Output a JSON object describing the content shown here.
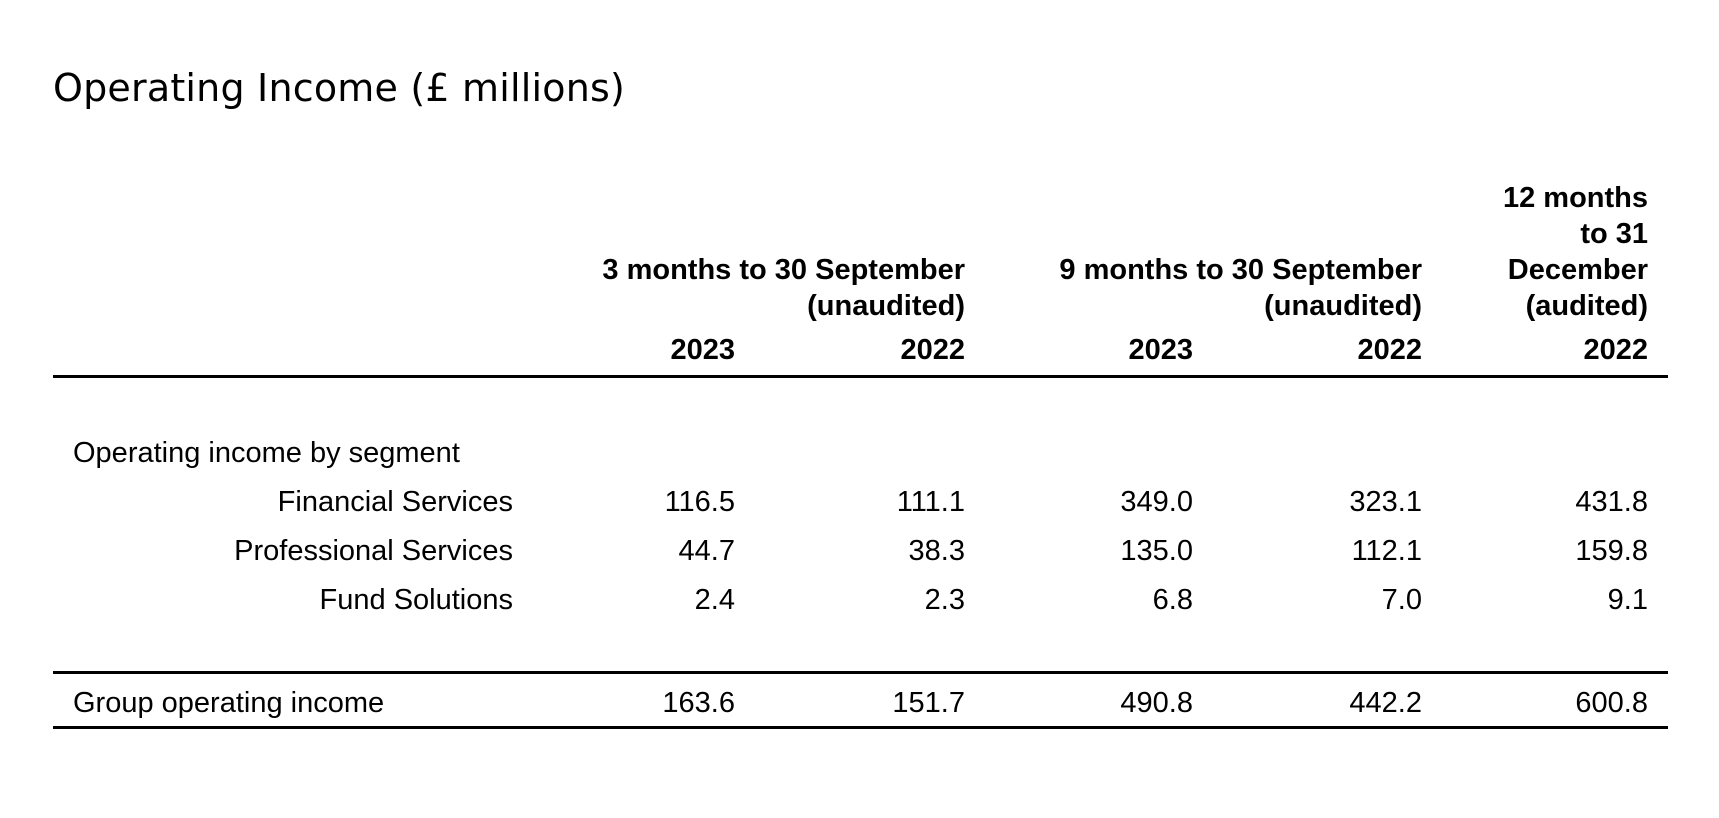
{
  "title": "Operating Income (£ millions)",
  "column_groups": [
    {
      "line1": "3 months to 30 September",
      "line2": "(unaudited)"
    },
    {
      "line1": "9 months to 30 September",
      "line2": "(unaudited)"
    },
    {
      "line1": "12 months",
      "line2": "to 31",
      "line3": "December",
      "line4": "(audited)"
    }
  ],
  "years": [
    "2023",
    "2022",
    "2023",
    "2022",
    "2022"
  ],
  "section_label": "Operating income by segment",
  "rows": [
    {
      "label": "Financial Services",
      "values": [
        "116.5",
        "111.1",
        "349.0",
        "323.1",
        "431.8"
      ]
    },
    {
      "label": "Professional Services",
      "values": [
        "44.7",
        "38.3",
        "135.0",
        "112.1",
        "159.8"
      ]
    },
    {
      "label": "Fund Solutions",
      "values": [
        "2.4",
        "2.3",
        "6.8",
        "7.0",
        "9.1"
      ]
    }
  ],
  "total": {
    "label": "Group operating income",
    "values": [
      "163.6",
      "151.7",
      "490.8",
      "442.2",
      "600.8"
    ]
  }
}
